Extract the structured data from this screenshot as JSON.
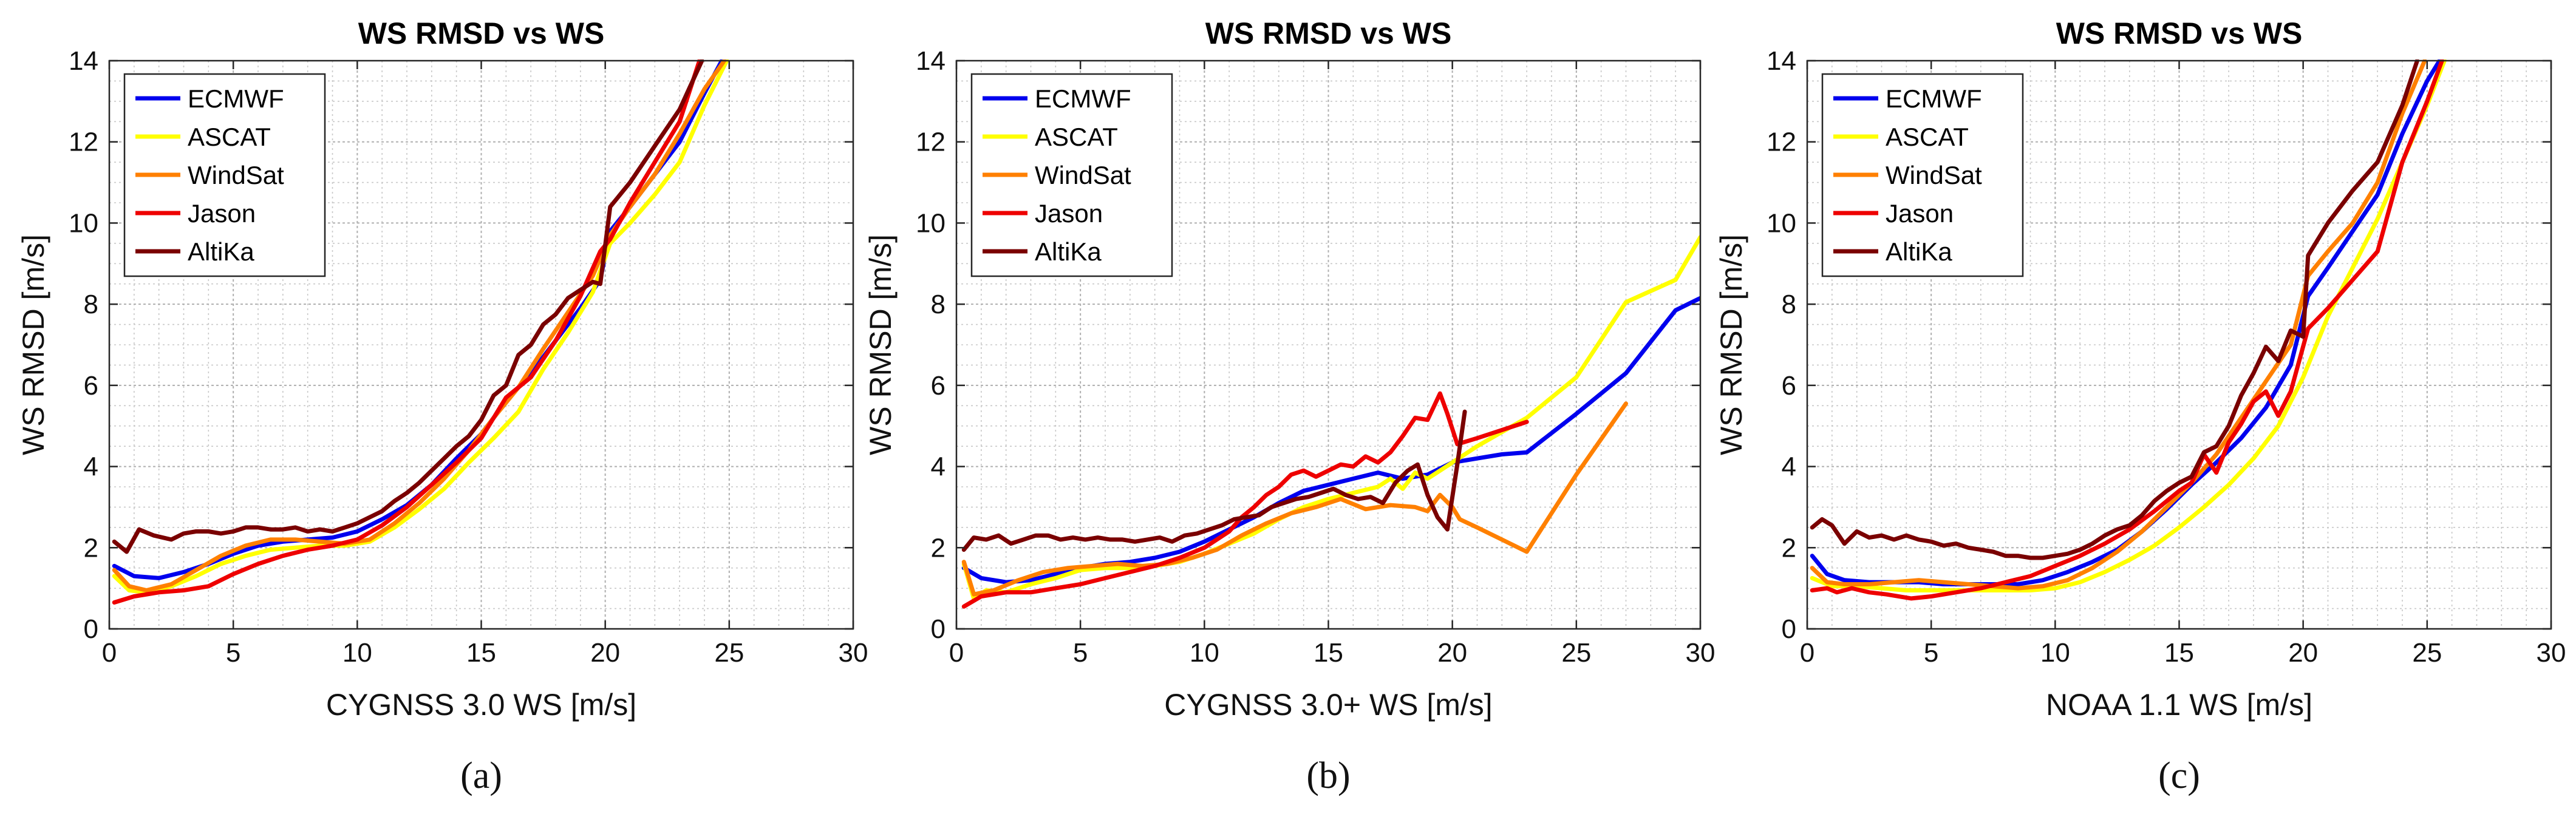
{
  "colors": {
    "ECMWF": "#0000ee",
    "ASCAT": "#ffff00",
    "WindSat": "#ff8000",
    "Jason": "#ee0000",
    "AltiKa": "#7a0000"
  },
  "chart_data": [
    {
      "type": "line",
      "panel": "(a)",
      "title": "WS RMSD vs WS",
      "xlabel": "CYGNSS 3.0 WS [m/s]",
      "ylabel": "WS RMSD [m/s]",
      "xlim": [
        0,
        30
      ],
      "ylim": [
        0,
        14
      ],
      "xticks": [
        0,
        5,
        10,
        15,
        20,
        25,
        30
      ],
      "yticks": [
        0,
        2,
        4,
        6,
        8,
        10,
        12,
        14
      ],
      "grid": true,
      "legend": "top-left",
      "series": [
        {
          "name": "ECMWF",
          "x": [
            0.2,
            1,
            2,
            3,
            4,
            5,
            6,
            7,
            8,
            9,
            10,
            11,
            12,
            13,
            14,
            15,
            16,
            17,
            18,
            19,
            19.8,
            20.2,
            21,
            22,
            23,
            24,
            24.7
          ],
          "y": [
            1.55,
            1.3,
            1.25,
            1.4,
            1.6,
            1.85,
            2.05,
            2.15,
            2.2,
            2.25,
            2.4,
            2.7,
            3.05,
            3.55,
            4.2,
            4.8,
            5.6,
            6.3,
            7.1,
            7.9,
            8.6,
            9.8,
            10.4,
            11.2,
            12.0,
            13.2,
            14.0
          ]
        },
        {
          "name": "ASCAT",
          "x": [
            0.2,
            0.8,
            1.5,
            2.5,
            3.5,
            4.5,
            5.5,
            6.5,
            7.5,
            8.5,
            9.5,
            10.5,
            11.5,
            12.5,
            13.5,
            14.5,
            15.5,
            16.5,
            17.5,
            18.5,
            19.5,
            20.2,
            21,
            22,
            23,
            24,
            24.9
          ],
          "y": [
            1.3,
            0.95,
            0.9,
            1.05,
            1.3,
            1.6,
            1.8,
            1.95,
            2.0,
            2.05,
            2.05,
            2.15,
            2.5,
            2.95,
            3.45,
            4.1,
            4.7,
            5.35,
            6.4,
            7.3,
            8.3,
            9.5,
            10.0,
            10.7,
            11.5,
            12.9,
            14.0
          ]
        },
        {
          "name": "WindSat",
          "x": [
            0.2,
            0.8,
            1.5,
            2.5,
            3.5,
            4.5,
            5.5,
            6.5,
            7.5,
            8.5,
            9.5,
            10.5,
            11.5,
            12.5,
            13.5,
            14.5,
            15.5,
            16.5,
            17.5,
            18.5,
            19.5,
            20.2,
            21,
            22,
            23,
            24,
            24.8
          ],
          "y": [
            1.45,
            1.05,
            0.95,
            1.1,
            1.45,
            1.8,
            2.05,
            2.2,
            2.2,
            2.15,
            2.1,
            2.2,
            2.6,
            3.1,
            3.7,
            4.4,
            5.2,
            5.95,
            6.9,
            7.8,
            8.7,
            9.7,
            10.4,
            11.2,
            12.2,
            13.3,
            14.0
          ]
        },
        {
          "name": "Jason",
          "x": [
            0.2,
            1,
            2,
            3,
            4,
            5,
            6,
            7,
            8,
            9,
            10,
            11,
            12,
            13,
            14,
            15,
            16,
            17,
            18,
            19,
            19.8,
            20.2,
            21,
            22,
            23,
            23.8
          ],
          "y": [
            0.65,
            0.8,
            0.9,
            0.95,
            1.05,
            1.35,
            1.6,
            1.8,
            1.95,
            2.05,
            2.2,
            2.55,
            3.0,
            3.55,
            4.1,
            4.7,
            5.7,
            6.2,
            7.1,
            8.2,
            9.3,
            9.6,
            10.5,
            11.5,
            12.5,
            14.0
          ]
        },
        {
          "name": "AltiKa",
          "x": [
            0.2,
            0.7,
            1.2,
            1.8,
            2.5,
            3,
            3.5,
            4,
            4.5,
            5,
            5.5,
            6,
            6.5,
            7,
            7.5,
            8,
            8.5,
            9,
            9.5,
            10,
            10.5,
            11,
            11.5,
            12,
            12.5,
            13,
            13.5,
            14,
            14.5,
            15,
            15.5,
            16,
            16.5,
            17,
            17.5,
            18,
            18.5,
            19,
            19.5,
            19.8,
            20.2,
            21,
            22,
            23,
            23.9
          ],
          "y": [
            2.15,
            1.9,
            2.45,
            2.3,
            2.2,
            2.35,
            2.4,
            2.4,
            2.35,
            2.4,
            2.5,
            2.5,
            2.45,
            2.45,
            2.5,
            2.4,
            2.45,
            2.4,
            2.5,
            2.6,
            2.75,
            2.9,
            3.15,
            3.35,
            3.6,
            3.9,
            4.2,
            4.5,
            4.75,
            5.15,
            5.75,
            6.0,
            6.75,
            7.0,
            7.5,
            7.75,
            8.15,
            8.35,
            8.55,
            8.5,
            10.4,
            11.0,
            11.9,
            12.8,
            14.0
          ]
        }
      ]
    },
    {
      "type": "line",
      "panel": "(b)",
      "title": "WS RMSD vs WS",
      "xlabel": "CYGNSS 3.0+ WS [m/s]",
      "ylabel": "WS RMSD [m/s]",
      "xlim": [
        0,
        30
      ],
      "ylim": [
        0,
        14
      ],
      "xticks": [
        0,
        5,
        10,
        15,
        20,
        25,
        30
      ],
      "yticks": [
        0,
        2,
        4,
        6,
        8,
        10,
        12,
        14
      ],
      "grid": true,
      "legend": "top-left",
      "series": [
        {
          "name": "ECMWF",
          "x": [
            0.3,
            1,
            2,
            3,
            4,
            5,
            6,
            7,
            8,
            9,
            10,
            11,
            12,
            13,
            14,
            15,
            16,
            17,
            18,
            19,
            20,
            21,
            22,
            23,
            25,
            27,
            29,
            30
          ],
          "y": [
            1.5,
            1.25,
            1.15,
            1.2,
            1.35,
            1.5,
            1.6,
            1.65,
            1.75,
            1.9,
            2.15,
            2.45,
            2.75,
            3.1,
            3.4,
            3.55,
            3.7,
            3.85,
            3.7,
            3.8,
            4.1,
            4.2,
            4.3,
            4.35,
            5.3,
            6.3,
            7.85,
            8.15
          ]
        },
        {
          "name": "ASCAT",
          "x": [
            0.3,
            0.7,
            1.2,
            2,
            3,
            4,
            5,
            6,
            7,
            8,
            9,
            10,
            11,
            12,
            13,
            14,
            15,
            16,
            17,
            17.5,
            18,
            18.5,
            19,
            19.5,
            20,
            21,
            23,
            25,
            27,
            29,
            30
          ],
          "y": [
            1.6,
            0.75,
            0.95,
            0.9,
            1.1,
            1.25,
            1.45,
            1.5,
            1.5,
            1.55,
            1.65,
            1.85,
            2.1,
            2.35,
            2.7,
            3.0,
            3.2,
            3.35,
            3.5,
            3.7,
            3.45,
            3.85,
            3.7,
            3.9,
            4.1,
            4.5,
            5.2,
            6.2,
            8.05,
            8.6,
            9.65
          ]
        },
        {
          "name": "WindSat",
          "x": [
            0.3,
            0.7,
            1.5,
            2.5,
            3.5,
            4.5,
            5.5,
            6.5,
            7.5,
            8.5,
            9.5,
            10.5,
            11.5,
            12.5,
            13.5,
            14.5,
            15.5,
            16.5,
            17.5,
            18.5,
            19,
            19.5,
            20,
            20.3,
            21,
            23,
            25,
            27
          ],
          "y": [
            1.65,
            0.85,
            0.95,
            1.2,
            1.4,
            1.5,
            1.55,
            1.6,
            1.55,
            1.6,
            1.75,
            1.95,
            2.3,
            2.6,
            2.85,
            3.0,
            3.2,
            2.95,
            3.05,
            3.0,
            2.9,
            3.3,
            3.0,
            2.7,
            2.5,
            1.9,
            3.8,
            5.55
          ]
        },
        {
          "name": "Jason",
          "x": [
            0.3,
            1,
            2,
            3,
            4,
            5,
            6,
            7,
            8,
            9,
            10,
            11,
            11.5,
            12,
            12.5,
            13,
            13.5,
            14,
            14.5,
            15,
            15.5,
            16,
            16.5,
            17,
            17.5,
            18,
            18.5,
            19,
            19.5,
            19.8,
            20.2,
            21,
            22,
            23
          ],
          "y": [
            0.55,
            0.8,
            0.9,
            0.9,
            1.0,
            1.1,
            1.25,
            1.4,
            1.55,
            1.75,
            2.0,
            2.4,
            2.75,
            3.0,
            3.3,
            3.5,
            3.8,
            3.9,
            3.75,
            3.9,
            4.05,
            4.0,
            4.25,
            4.1,
            4.35,
            4.75,
            5.2,
            5.15,
            5.8,
            5.3,
            4.55,
            4.7,
            4.9,
            5.1
          ]
        },
        {
          "name": "AltiKa",
          "x": [
            0.3,
            0.7,
            1.2,
            1.7,
            2.2,
            2.7,
            3.2,
            3.7,
            4.2,
            4.7,
            5.2,
            5.7,
            6.2,
            6.7,
            7.2,
            7.7,
            8.2,
            8.7,
            9.2,
            9.7,
            10.2,
            10.7,
            11.2,
            11.7,
            12.2,
            12.7,
            13.2,
            13.7,
            14.2,
            14.7,
            15.2,
            15.7,
            16.2,
            16.7,
            17.2,
            17.7,
            18.2,
            18.6,
            19,
            19.4,
            19.8,
            20.2,
            20.5
          ],
          "y": [
            1.95,
            2.25,
            2.2,
            2.3,
            2.1,
            2.2,
            2.3,
            2.3,
            2.2,
            2.25,
            2.2,
            2.25,
            2.2,
            2.2,
            2.15,
            2.2,
            2.25,
            2.15,
            2.3,
            2.35,
            2.45,
            2.55,
            2.7,
            2.75,
            2.8,
            3.0,
            3.1,
            3.2,
            3.25,
            3.35,
            3.45,
            3.3,
            3.2,
            3.25,
            3.1,
            3.6,
            3.9,
            4.05,
            3.3,
            2.75,
            2.45,
            4.05,
            5.35
          ]
        }
      ]
    },
    {
      "type": "line",
      "panel": "(c)",
      "title": "WS RMSD vs WS",
      "xlabel": "NOAA 1.1 WS [m/s]",
      "ylabel": "WS RMSD [m/s]",
      "xlim": [
        0,
        30
      ],
      "ylim": [
        0,
        14
      ],
      "xticks": [
        0,
        5,
        10,
        15,
        20,
        25,
        30
      ],
      "yticks": [
        0,
        2,
        4,
        6,
        8,
        10,
        12,
        14
      ],
      "grid": true,
      "legend": "top-left",
      "series": [
        {
          "name": "ECMWF",
          "x": [
            0.2,
            0.8,
            1.5,
            2.5,
            3.5,
            4.5,
            5.5,
            6.5,
            7.5,
            8.5,
            9.5,
            10.5,
            11.5,
            12.5,
            13.5,
            14.5,
            15.5,
            16.5,
            17.5,
            18.5,
            19.5,
            20.2,
            21,
            22,
            23,
            24,
            25,
            25.5
          ],
          "y": [
            1.8,
            1.35,
            1.2,
            1.15,
            1.15,
            1.15,
            1.1,
            1.1,
            1.1,
            1.1,
            1.2,
            1.4,
            1.65,
            1.95,
            2.4,
            2.95,
            3.55,
            4.1,
            4.7,
            5.45,
            6.5,
            8.2,
            8.9,
            9.8,
            10.7,
            12.2,
            13.5,
            14.0
          ]
        },
        {
          "name": "ASCAT",
          "x": [
            0.2,
            1,
            2,
            3,
            4,
            5,
            6,
            7,
            8,
            9,
            10,
            11,
            12,
            13,
            14,
            15,
            16,
            17,
            18,
            19,
            20,
            21,
            22,
            23,
            24,
            25,
            25.7
          ],
          "y": [
            1.25,
            1.05,
            1.05,
            1.0,
            0.95,
            0.95,
            0.95,
            0.95,
            0.95,
            0.95,
            1.0,
            1.15,
            1.4,
            1.7,
            2.05,
            2.5,
            3.0,
            3.55,
            4.2,
            5.0,
            6.2,
            7.7,
            8.9,
            10.1,
            11.5,
            12.9,
            14.0
          ]
        },
        {
          "name": "WindSat",
          "x": [
            0.2,
            0.8,
            1.5,
            2.5,
            3.5,
            4.5,
            5.5,
            6.5,
            7.5,
            8.5,
            9.5,
            10.5,
            11.5,
            12.5,
            13.5,
            14.5,
            15.5,
            16.5,
            17.5,
            18.5,
            19.5,
            20.2,
            21,
            22,
            23,
            24,
            24.9
          ],
          "y": [
            1.5,
            1.15,
            1.1,
            1.1,
            1.15,
            1.2,
            1.15,
            1.1,
            1.05,
            1.0,
            1.05,
            1.2,
            1.5,
            1.9,
            2.4,
            3.0,
            3.6,
            4.3,
            5.2,
            6.1,
            7.0,
            8.7,
            9.3,
            10.0,
            11.0,
            12.7,
            14.0
          ]
        },
        {
          "name": "Jason",
          "x": [
            0.2,
            0.8,
            1.2,
            1.8,
            2.5,
            3.2,
            4.2,
            5,
            6,
            7,
            8,
            9,
            10,
            11,
            12,
            13,
            14,
            15,
            15.5,
            16,
            16.5,
            17,
            17.5,
            18,
            18.5,
            19,
            19.5,
            20.2,
            21,
            22,
            23,
            24,
            25,
            25.6
          ],
          "y": [
            0.95,
            1.0,
            0.9,
            1.0,
            0.9,
            0.85,
            0.75,
            0.8,
            0.9,
            1.0,
            1.15,
            1.3,
            1.55,
            1.8,
            2.1,
            2.45,
            2.9,
            3.4,
            3.6,
            4.3,
            3.85,
            4.6,
            5.05,
            5.6,
            5.85,
            5.25,
            5.85,
            7.4,
            7.9,
            8.6,
            9.3,
            11.5,
            13.0,
            14.0
          ]
        },
        {
          "name": "AltiKa",
          "x": [
            0.2,
            0.6,
            1,
            1.5,
            2,
            2.5,
            3,
            3.5,
            4,
            4.5,
            5,
            5.5,
            6,
            6.5,
            7,
            7.5,
            8,
            8.5,
            9,
            9.5,
            10,
            10.5,
            11,
            11.5,
            12,
            12.5,
            13,
            13.5,
            14,
            14.5,
            15,
            15.5,
            16,
            16.5,
            17,
            17.5,
            18,
            18.5,
            19,
            19.5,
            20,
            20.2,
            21,
            22,
            23,
            24,
            24.6
          ],
          "y": [
            2.5,
            2.7,
            2.55,
            2.1,
            2.4,
            2.25,
            2.3,
            2.2,
            2.3,
            2.2,
            2.15,
            2.05,
            2.1,
            2.0,
            1.95,
            1.9,
            1.8,
            1.8,
            1.75,
            1.75,
            1.8,
            1.85,
            1.95,
            2.1,
            2.3,
            2.45,
            2.55,
            2.8,
            3.15,
            3.4,
            3.6,
            3.75,
            4.35,
            4.5,
            5.0,
            5.75,
            6.3,
            6.95,
            6.6,
            7.35,
            7.2,
            9.2,
            10.0,
            10.8,
            11.5,
            12.9,
            14.0
          ]
        }
      ]
    }
  ]
}
